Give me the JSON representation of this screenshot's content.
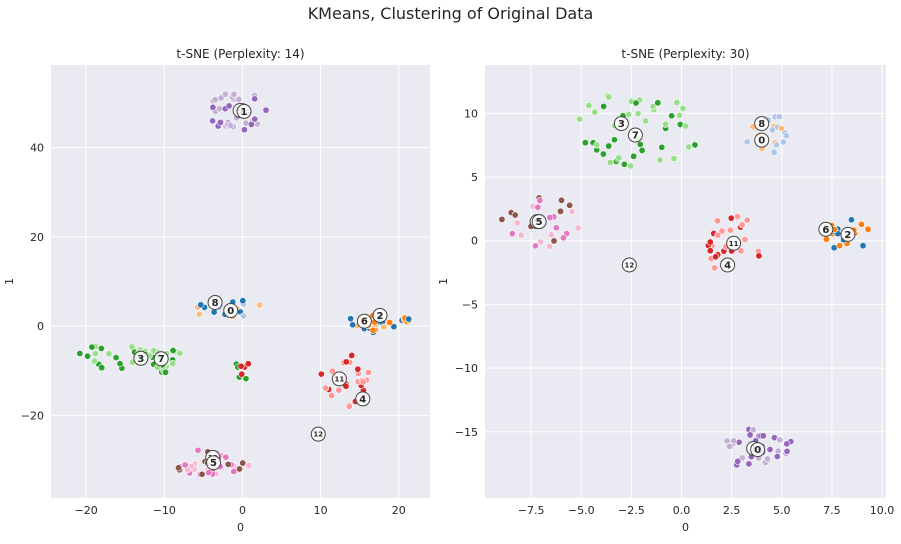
{
  "figure_title": "KMeans, Clustering of Original Data",
  "colors": {
    "0": "#1f77b4",
    "1": "#aec7e8",
    "2": "#ff7f0e",
    "3": "#ffbb78",
    "4": "#2ca02c",
    "5": "#98df8a",
    "6": "#d62728",
    "7": "#ff9896",
    "8": "#9467bd",
    "9": "#c5b0d5",
    "10": "#8c564b",
    "11": "#c49c94",
    "12": "#e377c2",
    "13": "#f7b6d2",
    "plot_bg": "#eaeaf2",
    "grid": "#ffffff"
  },
  "chart_data": [
    {
      "type": "scatter",
      "title": "t-SNE (Perplexity: 14)",
      "xlabel": "0",
      "ylabel": "1",
      "xlim": [
        -24.5,
        24
      ],
      "ylim": [
        -38.5,
        58.5
      ],
      "xticks": [
        -20,
        -10,
        0,
        10,
        20
      ],
      "yticks": [
        -20,
        0,
        20,
        40
      ],
      "xtick_labels": [
        "−20",
        "−10",
        "0",
        "10",
        "20"
      ],
      "ytick_labels": [
        "−20",
        "0",
        "20",
        "40"
      ],
      "clusters": [
        {
          "id": "8",
          "center": [
            -0.5,
            48
          ],
          "radius": [
            4,
            4.5
          ],
          "n": 38,
          "colors": [
            "8",
            "9"
          ]
        },
        {
          "id": "3",
          "center": [
            -16,
            -7
          ],
          "radius": [
            5.5,
            3
          ],
          "n": 24,
          "colors": [
            "4",
            "5"
          ]
        },
        {
          "id": "7",
          "center": [
            -10,
            -7.5
          ],
          "radius": [
            3.5,
            3
          ],
          "n": 22,
          "colors": [
            "4",
            "5"
          ]
        },
        {
          "id": "v",
          "center": [
            0,
            -10
          ],
          "radius": [
            1.5,
            2
          ],
          "n": 8,
          "colors": [
            "4",
            "6"
          ]
        },
        {
          "id": "8b",
          "center": [
            -2,
            4
          ],
          "radius": [
            5,
            2
          ],
          "n": 20,
          "colors": [
            "3",
            "1",
            "0"
          ]
        },
        {
          "id": "2",
          "center": [
            17.5,
            1
          ],
          "radius": [
            4,
            2.5
          ],
          "n": 30,
          "colors": [
            "2",
            "0",
            "3"
          ]
        },
        {
          "id": "11",
          "center": [
            13.5,
            -12
          ],
          "radius": [
            3.5,
            6
          ],
          "n": 26,
          "colors": [
            "6",
            "7"
          ]
        },
        {
          "id": "13",
          "center": [
            -4,
            -30.5
          ],
          "radius": [
            5,
            3
          ],
          "n": 38,
          "colors": [
            "10",
            "12",
            "13"
          ]
        }
      ],
      "labels": [
        {
          "text": "9",
          "x": -0.3,
          "y": 48.3
        },
        {
          "text": "1",
          "x": 0.2,
          "y": 48.1
        },
        {
          "text": "8",
          "x": -3.5,
          "y": 5.3
        },
        {
          "text": "0",
          "x": -1.5,
          "y": 3.5
        },
        {
          "text": "3",
          "x": -13,
          "y": -7.2
        },
        {
          "text": "7",
          "x": -10.4,
          "y": -7.3
        },
        {
          "text": "6",
          "x": 15.6,
          "y": 1.1
        },
        {
          "text": "2",
          "x": 17.6,
          "y": 2.4
        },
        {
          "text": "11",
          "x": 12.4,
          "y": -11.8
        },
        {
          "text": "4",
          "x": 15.4,
          "y": -16.3
        },
        {
          "text": "12",
          "x": 9.7,
          "y": -24.2
        },
        {
          "text": "10",
          "x": -3.8,
          "y": -29.4
        },
        {
          "text": "5",
          "x": -3.7,
          "y": -30.6
        }
      ]
    },
    {
      "type": "scatter",
      "title": "t-SNE (Perplexity: 30)",
      "xlabel": "0",
      "ylabel": "1",
      "xlim": [
        -9.8,
        10.2
      ],
      "ylim": [
        -20.2,
        13.8
      ],
      "xticks": [
        -7.5,
        -5.0,
        -2.5,
        0.0,
        2.5,
        5.0,
        7.5,
        10.0
      ],
      "yticks": [
        -15,
        -10,
        -5,
        0,
        5,
        10
      ],
      "xtick_labels": [
        "−7.5",
        "−5.0",
        "−2.5",
        "0.0",
        "2.5",
        "5.0",
        "7.5",
        "10.0"
      ],
      "ytick_labels": [
        "−15",
        "−10",
        "−5",
        "0",
        "5",
        "10"
      ],
      "clusters": [
        {
          "id": "3",
          "center": [
            -2.2,
            8.8
          ],
          "radius": [
            3.2,
            3
          ],
          "n": 48,
          "colors": [
            "4",
            "5"
          ]
        },
        {
          "id": "8",
          "center": [
            4,
            8.5
          ],
          "radius": [
            1.3,
            2.2
          ],
          "n": 20,
          "colors": [
            "3",
            "1"
          ]
        },
        {
          "id": "9",
          "center": [
            -7,
            1.5
          ],
          "radius": [
            2,
            2
          ],
          "n": 26,
          "colors": [
            "10",
            "12",
            "13"
          ]
        },
        {
          "id": "2",
          "center": [
            8.2,
            0.5
          ],
          "radius": [
            1.3,
            1.3
          ],
          "n": 22,
          "colors": [
            "2",
            "0"
          ]
        },
        {
          "id": "4",
          "center": [
            2.5,
            -0.3
          ],
          "radius": [
            1.5,
            2.5
          ],
          "n": 28,
          "colors": [
            "6",
            "7"
          ]
        },
        {
          "id": "1",
          "center": [
            3.8,
            -16.3
          ],
          "radius": [
            1.8,
            1.6
          ],
          "n": 34,
          "colors": [
            "8",
            "9"
          ]
        }
      ],
      "labels": [
        {
          "text": "3",
          "x": -3,
          "y": 9.2
        },
        {
          "text": "7",
          "x": -2.3,
          "y": 8.3
        },
        {
          "text": "8",
          "x": 4,
          "y": 9.2
        },
        {
          "text": "0",
          "x": 4,
          "y": 7.9
        },
        {
          "text": "9",
          "x": -7.2,
          "y": 1.5
        },
        {
          "text": "5",
          "x": -7.1,
          "y": 1.5
        },
        {
          "text": "6",
          "x": 7.2,
          "y": 0.9
        },
        {
          "text": "2",
          "x": 8.3,
          "y": 0.5
        },
        {
          "text": "11",
          "x": 2.6,
          "y": -0.2
        },
        {
          "text": "4",
          "x": 2.3,
          "y": -1.9
        },
        {
          "text": "12",
          "x": -2.6,
          "y": -1.9
        },
        {
          "text": "1",
          "x": 3.6,
          "y": -16.3
        },
        {
          "text": "0",
          "x": 3.8,
          "y": -16.4
        }
      ]
    }
  ]
}
